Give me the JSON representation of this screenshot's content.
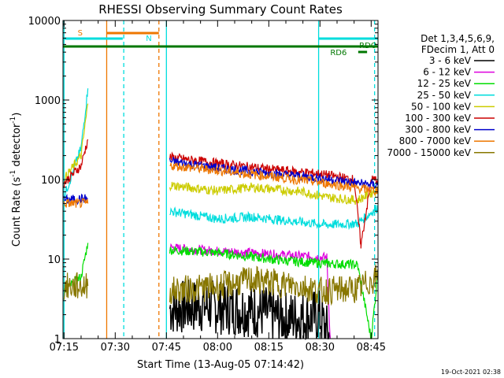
{
  "chart_data": {
    "type": "line",
    "title": "RHESSI Observing Summary Count Rates",
    "xlabel": "Start Time (13-Aug-05 07:14:42)",
    "ylabel_main": "Count Rate (s",
    "ylabel_sup1": "-1",
    "ylabel_mid": " detector",
    "ylabel_sup2": "-1",
    "ylabel_end": ")",
    "y_scale": "log",
    "ylim": [
      1,
      10000
    ],
    "xlim_min": [
      434.7,
      527
    ],
    "x_ticks": [
      {
        "label": "07:15",
        "min": 435
      },
      {
        "label": "07:30",
        "min": 450
      },
      {
        "label": "07:45",
        "min": 465
      },
      {
        "label": "08:00",
        "min": 480
      },
      {
        "label": "08:15",
        "min": 495
      },
      {
        "label": "08:30",
        "min": 510
      },
      {
        "label": "08:45",
        "min": 525
      }
    ],
    "y_ticks": [
      {
        "label": "1",
        "value": 1
      },
      {
        "label": "10",
        "value": 10
      },
      {
        "label": "100",
        "value": 100
      },
      {
        "label": "1000",
        "value": 1000
      },
      {
        "label": "10000",
        "value": 10000
      }
    ],
    "legend_header": [
      "Det 1,3,4,5,6,9,",
      "FDecim 1, Att 0"
    ],
    "series": [
      {
        "name": "3 - 6 keV",
        "color": "#000000",
        "values": [
          [
            466,
            2.4
          ],
          [
            475,
            2.6
          ],
          [
            490,
            2.3
          ],
          [
            500,
            1.8
          ],
          [
            510,
            1.9
          ],
          [
            513,
            1
          ]
        ]
      },
      {
        "name": "6 - 12 keV",
        "color": "#dd00dd",
        "values": [
          [
            466,
            14
          ],
          [
            475,
            13
          ],
          [
            490,
            12
          ],
          [
            503,
            11
          ],
          [
            512,
            10.5
          ],
          [
            513,
            1
          ]
        ]
      },
      {
        "name": "12 - 25 keV",
        "color": "#00dd00",
        "values": [
          [
            435,
            4
          ],
          [
            440,
            6
          ],
          [
            442,
            16
          ],
          [
            466,
            13
          ],
          [
            480,
            12
          ],
          [
            500,
            9.5
          ],
          [
            512,
            8.8
          ],
          [
            521,
            8.5
          ],
          [
            525,
            1
          ],
          [
            527,
            7
          ]
        ]
      },
      {
        "name": "25 - 50 keV",
        "color": "#00dddd",
        "values": [
          [
            435,
            60
          ],
          [
            440,
            250
          ],
          [
            442,
            1400
          ],
          [
            466,
            40
          ],
          [
            480,
            32
          ],
          [
            490,
            34
          ],
          [
            505,
            29
          ],
          [
            512,
            27
          ],
          [
            521,
            28
          ],
          [
            527,
            45
          ]
        ]
      },
      {
        "name": "50 - 100 keV",
        "color": "#cccc00",
        "values": [
          [
            435,
            100
          ],
          [
            440,
            200
          ],
          [
            442,
            900
          ],
          [
            466,
            85
          ],
          [
            480,
            72
          ],
          [
            490,
            80
          ],
          [
            505,
            70
          ],
          [
            512,
            60
          ],
          [
            521,
            55
          ],
          [
            527,
            75
          ]
        ]
      },
      {
        "name": "100 - 300 keV",
        "color": "#cc0000",
        "values": [
          [
            435,
            90
          ],
          [
            440,
            150
          ],
          [
            442,
            320
          ],
          [
            466,
            190
          ],
          [
            480,
            160
          ],
          [
            495,
            135
          ],
          [
            510,
            118
          ],
          [
            520,
            100
          ],
          [
            522,
            15
          ],
          [
            525,
            100
          ],
          [
            527,
            100
          ]
        ]
      },
      {
        "name": "300 - 800 keV",
        "color": "#0000cc",
        "values": [
          [
            435,
            55
          ],
          [
            442,
            58
          ],
          [
            466,
            170
          ],
          [
            480,
            140
          ],
          [
            495,
            120
          ],
          [
            510,
            105
          ],
          [
            521,
            90
          ],
          [
            527,
            85
          ]
        ]
      },
      {
        "name": "800 - 7000 keV",
        "color": "#ee7700",
        "values": [
          [
            435,
            50
          ],
          [
            442,
            50
          ],
          [
            466,
            150
          ],
          [
            480,
            130
          ],
          [
            495,
            110
          ],
          [
            510,
            92
          ],
          [
            521,
            78
          ],
          [
            527,
            72
          ]
        ]
      },
      {
        "name": "7000 - 15000 keV",
        "color": "#887700",
        "values": [
          [
            435,
            4.5
          ],
          [
            442,
            4.6
          ],
          [
            466,
            4
          ],
          [
            480,
            4.5
          ],
          [
            490,
            5.5
          ],
          [
            505,
            4.5
          ],
          [
            510,
            4
          ],
          [
            521,
            4.2
          ],
          [
            527,
            6
          ]
        ]
      }
    ],
    "flags": [
      {
        "label": "S",
        "color": "#ee7700"
      },
      {
        "label": "N",
        "color": "#00dddd"
      },
      {
        "label": "RD6",
        "color": "#007700"
      },
      {
        "label": "RDO",
        "color": "#007700"
      }
    ],
    "timestamp": "19-Oct-2021 02:38"
  }
}
